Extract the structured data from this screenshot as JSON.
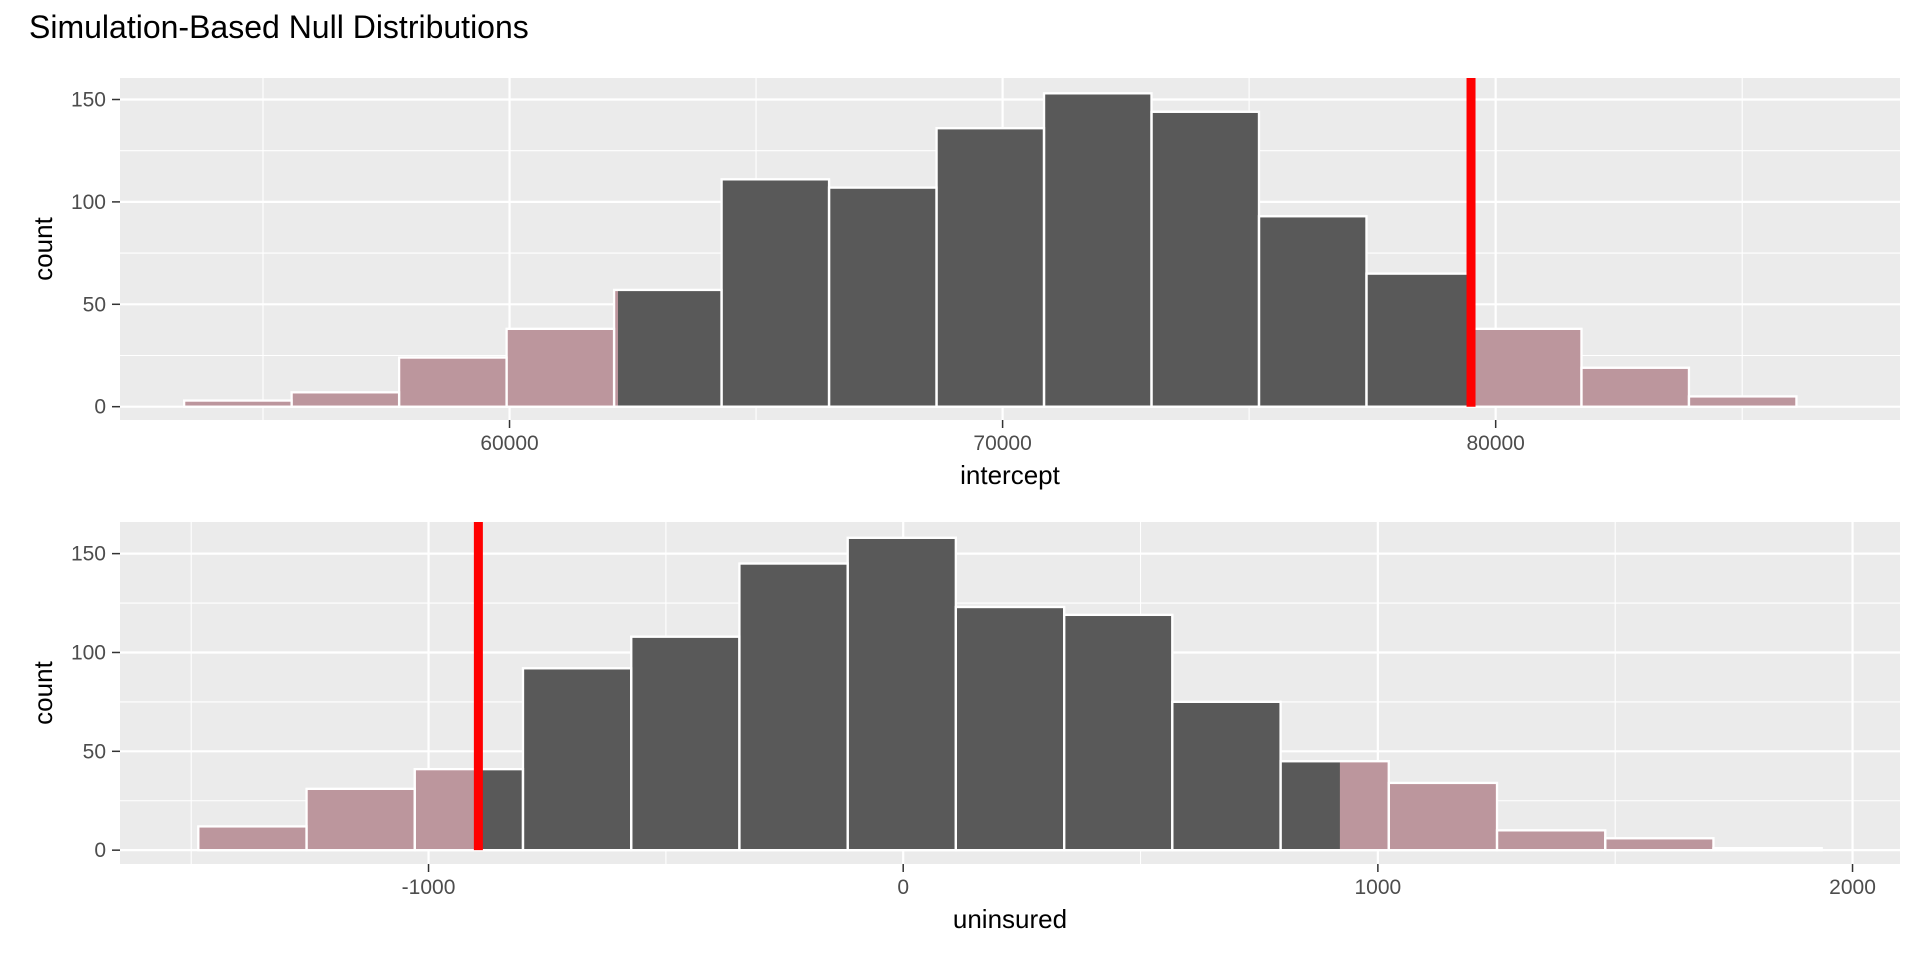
{
  "title": "Simulation-Based Null Distributions",
  "colors": {
    "bar_fill": "#595959",
    "bar_outline": "#ffffff",
    "shade_fill": "#ffc0cb",
    "shade_opacity": 0.6,
    "obs_line": "#ff0000",
    "panel_bg": "#ebebeb",
    "grid": "#ffffff"
  },
  "chart_data": [
    {
      "type": "bar",
      "subtype": "histogram",
      "xlabel": "intercept",
      "ylabel": "count",
      "xlim": [
        52100,
        88200
      ],
      "ylim": [
        -6.5,
        160.5
      ],
      "x_ticks": [
        60000,
        70000,
        80000
      ],
      "x_tick_labels": [
        "60000",
        "70000",
        "80000"
      ],
      "x_minor_ticks": [
        55000,
        65000,
        75000,
        85000
      ],
      "y_ticks": [
        0,
        50,
        100,
        150
      ],
      "y_tick_labels": [
        "0",
        "50",
        "100",
        "150"
      ],
      "y_minor_ticks": [
        25,
        75,
        125
      ],
      "bin_width": 2180,
      "bins": [
        {
          "x0": 53400,
          "x1": 55580,
          "count": 3
        },
        {
          "x0": 55580,
          "x1": 57760,
          "count": 7
        },
        {
          "x0": 57760,
          "x1": 59940,
          "count": 24
        },
        {
          "x0": 59940,
          "x1": 62120,
          "count": 38
        },
        {
          "x0": 62120,
          "x1": 64300,
          "count": 57
        },
        {
          "x0": 64300,
          "x1": 66480,
          "count": 111
        },
        {
          "x0": 66480,
          "x1": 68660,
          "count": 107
        },
        {
          "x0": 68660,
          "x1": 70840,
          "count": 136
        },
        {
          "x0": 70840,
          "x1": 73020,
          "count": 153
        },
        {
          "x0": 73020,
          "x1": 75200,
          "count": 144
        },
        {
          "x0": 75200,
          "x1": 77380,
          "count": 93
        },
        {
          "x0": 77380,
          "x1": 79560,
          "count": 65
        },
        {
          "x0": 79560,
          "x1": 81740,
          "count": 38
        },
        {
          "x0": 81740,
          "x1": 83920,
          "count": 19
        },
        {
          "x0": 83920,
          "x1": 86100,
          "count": 5
        }
      ],
      "observed_stat": 79500,
      "shade_regions": [
        [
          52100,
          62200
        ],
        [
          79500,
          88200
        ]
      ]
    },
    {
      "type": "bar",
      "subtype": "histogram",
      "xlabel": "uninsured",
      "ylabel": "count",
      "xlim": [
        -1650,
        2100
      ],
      "ylim": [
        -7,
        166
      ],
      "x_ticks": [
        -1000,
        0,
        1000,
        2000
      ],
      "x_tick_labels": [
        "-1000",
        "0",
        "1000",
        "2000"
      ],
      "x_minor_ticks": [
        -1500,
        -500,
        500,
        1500
      ],
      "y_ticks": [
        0,
        50,
        100,
        150
      ],
      "y_tick_labels": [
        "0",
        "50",
        "100",
        "150"
      ],
      "y_minor_ticks": [
        25,
        75,
        125
      ],
      "bin_width": 228,
      "bins": [
        {
          "x0": -1485,
          "x1": -1257,
          "count": 12
        },
        {
          "x0": -1257,
          "x1": -1029,
          "count": 31
        },
        {
          "x0": -1029,
          "x1": -801,
          "count": 41
        },
        {
          "x0": -801,
          "x1": -573,
          "count": 92
        },
        {
          "x0": -573,
          "x1": -345,
          "count": 108
        },
        {
          "x0": -345,
          "x1": -117,
          "count": 145
        },
        {
          "x0": -117,
          "x1": 111,
          "count": 158
        },
        {
          "x0": 111,
          "x1": 339,
          "count": 123
        },
        {
          "x0": 339,
          "x1": 567,
          "count": 119
        },
        {
          "x0": 567,
          "x1": 795,
          "count": 75
        },
        {
          "x0": 795,
          "x1": 1023,
          "count": 45
        },
        {
          "x0": 1023,
          "x1": 1251,
          "count": 34
        },
        {
          "x0": 1251,
          "x1": 1479,
          "count": 10
        },
        {
          "x0": 1479,
          "x1": 1707,
          "count": 6
        },
        {
          "x0": 1707,
          "x1": 1935,
          "count": 1
        }
      ],
      "observed_stat": -895,
      "shade_regions": [
        [
          -1650,
          -895
        ],
        [
          920,
          2100
        ]
      ]
    }
  ]
}
